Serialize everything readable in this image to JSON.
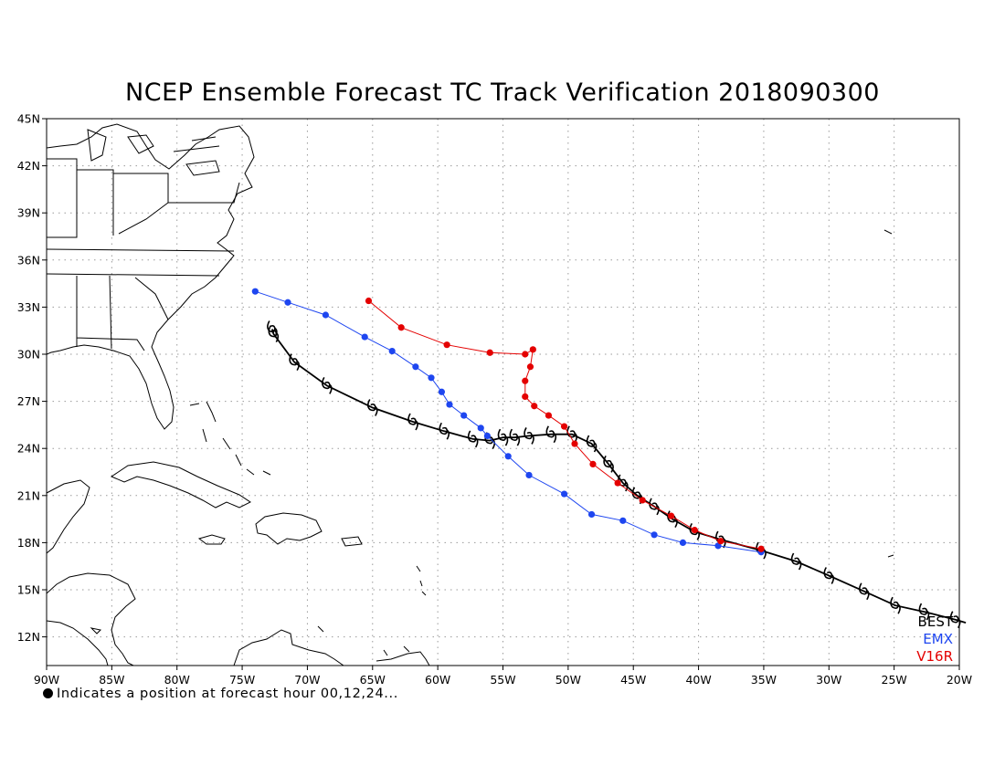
{
  "title": "NCEP Ensemble Forecast TC Track Verification 2018090300",
  "footnote": "Indicates a position at forecast hour 00,12,24...",
  "chart_data": {
    "type": "map",
    "lon_ticks": [
      "90W",
      "85W",
      "80W",
      "75W",
      "70W",
      "65W",
      "60W",
      "55W",
      "50W",
      "45W",
      "40W",
      "35W",
      "30W",
      "25W",
      "20W"
    ],
    "lat_ticks": [
      "45N",
      "42N",
      "39N",
      "36N",
      "33N",
      "30N",
      "27N",
      "24N",
      "21N",
      "18N",
      "15N",
      "12N"
    ],
    "lon_range": [
      -90,
      -20
    ],
    "lat_range": [
      10,
      45
    ],
    "grid": true,
    "legend_position": "bottom-right",
    "series": [
      {
        "name": "BEST",
        "color": "#000000",
        "marker": "tc-symbol",
        "points": [
          [
            -19.5,
            12.9
          ],
          [
            -20.3,
            13.1
          ],
          [
            -22.7,
            13.6
          ],
          [
            -24.9,
            14.0
          ],
          [
            -27.3,
            14.9
          ],
          [
            -30.0,
            15.9
          ],
          [
            -32.5,
            16.8
          ],
          [
            -35.2,
            17.5
          ],
          [
            -38.3,
            18.2
          ],
          [
            -40.3,
            18.7
          ],
          [
            -42.0,
            19.5
          ],
          [
            -43.4,
            20.3
          ],
          [
            -44.7,
            21.0
          ],
          [
            -45.8,
            21.8
          ],
          [
            -46.9,
            23.0
          ],
          [
            -48.2,
            24.3
          ],
          [
            -49.7,
            24.9
          ],
          [
            -51.3,
            24.9
          ],
          [
            -53.0,
            24.8
          ],
          [
            -54.1,
            24.7
          ],
          [
            -55.0,
            24.7
          ],
          [
            -56.0,
            24.5
          ],
          [
            -57.3,
            24.6
          ],
          [
            -59.5,
            25.1
          ],
          [
            -61.9,
            25.7
          ],
          [
            -65.0,
            26.6
          ],
          [
            -68.5,
            28.0
          ],
          [
            -71.0,
            29.5
          ],
          [
            -72.6,
            31.3
          ],
          [
            -72.7,
            31.6
          ]
        ]
      },
      {
        "name": "EMX",
        "color": "#1e46f0",
        "marker": "dot",
        "points": [
          [
            -35.2,
            17.4
          ],
          [
            -38.5,
            17.8
          ],
          [
            -41.2,
            18.0
          ],
          [
            -43.4,
            18.5
          ],
          [
            -45.8,
            19.4
          ],
          [
            -48.2,
            19.8
          ],
          [
            -50.3,
            21.1
          ],
          [
            -53.0,
            22.3
          ],
          [
            -54.6,
            23.5
          ],
          [
            -56.2,
            24.8
          ],
          [
            -56.7,
            25.3
          ],
          [
            -58.0,
            26.1
          ],
          [
            -59.1,
            26.8
          ],
          [
            -59.7,
            27.6
          ],
          [
            -60.5,
            28.5
          ],
          [
            -61.7,
            29.2
          ],
          [
            -63.5,
            30.2
          ],
          [
            -65.6,
            31.1
          ],
          [
            -68.6,
            32.5
          ],
          [
            -71.5,
            33.3
          ],
          [
            -74.0,
            34.0
          ]
        ]
      },
      {
        "name": "V16R",
        "color": "#e40000",
        "marker": "dot",
        "points": [
          [
            -35.2,
            17.6
          ],
          [
            -38.3,
            18.1
          ],
          [
            -40.3,
            18.8
          ],
          [
            -42.1,
            19.7
          ],
          [
            -44.3,
            20.7
          ],
          [
            -46.2,
            21.8
          ],
          [
            -48.1,
            23.0
          ],
          [
            -49.5,
            24.3
          ],
          [
            -50.3,
            25.4
          ],
          [
            -51.5,
            26.1
          ],
          [
            -52.6,
            26.7
          ],
          [
            -53.3,
            27.3
          ],
          [
            -53.3,
            28.3
          ],
          [
            -52.9,
            29.2
          ],
          [
            -52.7,
            30.3
          ],
          [
            -53.3,
            30.0
          ],
          [
            -56.0,
            30.1
          ],
          [
            -59.3,
            30.6
          ],
          [
            -62.8,
            31.7
          ],
          [
            -65.3,
            33.4
          ]
        ]
      }
    ]
  }
}
